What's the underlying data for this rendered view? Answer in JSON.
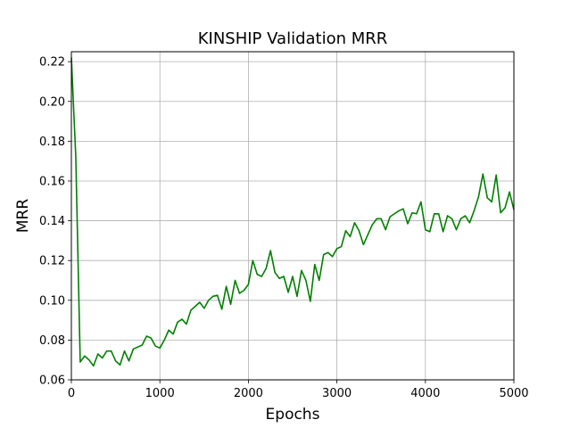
{
  "chart_data": {
    "type": "line",
    "title": "KINSHIP Validation MRR",
    "xlabel": "Epochs",
    "ylabel": "MRR",
    "xlim": [
      0,
      5000
    ],
    "ylim": [
      0.06,
      0.225
    ],
    "grid": true,
    "x_ticks": [
      0,
      1000,
      2000,
      3000,
      4000,
      5000
    ],
    "x_tick_labels": [
      "0",
      "1000",
      "2000",
      "3000",
      "4000",
      "5000"
    ],
    "y_ticks": [
      0.06,
      0.08,
      0.1,
      0.12,
      0.14,
      0.16,
      0.18,
      0.2,
      0.22
    ],
    "y_tick_labels": [
      "0.06",
      "0.08",
      "0.10",
      "0.12",
      "0.14",
      "0.16",
      "0.18",
      "0.20",
      "0.22"
    ],
    "series": [
      {
        "color": "#008000",
        "x": [
          0,
          50,
          100,
          150,
          200,
          250,
          300,
          350,
          400,
          450,
          500,
          550,
          600,
          650,
          700,
          750,
          800,
          850,
          900,
          950,
          1000,
          1050,
          1100,
          1150,
          1200,
          1250,
          1300,
          1350,
          1400,
          1450,
          1500,
          1550,
          1600,
          1650,
          1700,
          1750,
          1800,
          1850,
          1900,
          1950,
          2000,
          2050,
          2100,
          2150,
          2200,
          2250,
          2300,
          2350,
          2400,
          2450,
          2500,
          2550,
          2600,
          2650,
          2700,
          2750,
          2800,
          2850,
          2900,
          2950,
          3000,
          3050,
          3100,
          3150,
          3200,
          3250,
          3300,
          3350,
          3400,
          3450,
          3500,
          3550,
          3600,
          3650,
          3700,
          3750,
          3800,
          3850,
          3900,
          3950,
          4000,
          4050,
          4100,
          4150,
          4200,
          4250,
          4300,
          4350,
          4400,
          4450,
          4500,
          4550,
          4600,
          4650,
          4700,
          4750,
          4800,
          4850,
          4900,
          4950,
          5000
        ],
        "y": [
          0.222,
          0.172,
          0.069,
          0.072,
          0.07,
          0.067,
          0.073,
          0.071,
          0.0745,
          0.0745,
          0.0695,
          0.0675,
          0.0745,
          0.0695,
          0.0755,
          0.0765,
          0.0775,
          0.082,
          0.081,
          0.077,
          0.076,
          0.08,
          0.085,
          0.083,
          0.089,
          0.0905,
          0.088,
          0.095,
          0.097,
          0.099,
          0.096,
          0.1,
          0.102,
          0.1025,
          0.0955,
          0.107,
          0.098,
          0.11,
          0.1035,
          0.105,
          0.108,
          0.12,
          0.113,
          0.112,
          0.116,
          0.125,
          0.114,
          0.111,
          0.112,
          0.104,
          0.112,
          0.102,
          0.115,
          0.11,
          0.0995,
          0.118,
          0.11,
          0.123,
          0.124,
          0.122,
          0.126,
          0.127,
          0.135,
          0.132,
          0.139,
          0.135,
          0.128,
          0.133,
          0.138,
          0.141,
          0.141,
          0.1355,
          0.142,
          0.1435,
          0.145,
          0.146,
          0.1385,
          0.144,
          0.1435,
          0.1495,
          0.1355,
          0.1345,
          0.1435,
          0.1435,
          0.1345,
          0.1425,
          0.141,
          0.1355,
          0.141,
          0.1425,
          0.139,
          0.145,
          0.152,
          0.1635,
          0.1515,
          0.1495,
          0.163,
          0.144,
          0.1465,
          0.1545,
          0.1455
        ]
      }
    ]
  }
}
